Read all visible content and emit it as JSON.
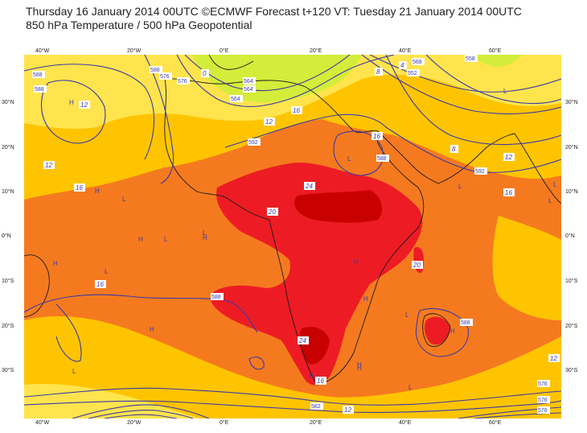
{
  "header": {
    "line1": "Thursday 16 January 2014 00UTC ©ECMWF Forecast t+120 VT: Tuesday 21 January 2014 00UTC",
    "line2": "850 hPa Temperature / 500 hPa Geopotential"
  },
  "axes": {
    "lon_labels": [
      "40°W",
      "20°W",
      "0°E",
      "20°E",
      "40°E",
      "60°E"
    ],
    "lat_labels": [
      "30°N",
      "20°N",
      "10°N",
      "0°N",
      "10°S",
      "20°S",
      "30°S"
    ]
  },
  "colors": {
    "ocean_warm": "#f57a1f",
    "band_yellow": "#ffc400",
    "band_lightyellow": "#ffe44d",
    "band_green": "#d4ec3a",
    "hot_red": "#ed1c24",
    "very_hot": "#c80000",
    "contour": "#3b3aa8",
    "coast": "#1a1a1a"
  },
  "temp_labels": [
    {
      "id": "t12a",
      "text": "12"
    },
    {
      "id": "t12b",
      "text": "12"
    },
    {
      "id": "t12c",
      "text": "12"
    },
    {
      "id": "t16a",
      "text": "16"
    },
    {
      "id": "t16b",
      "text": "16"
    },
    {
      "id": "t16c",
      "text": "16"
    },
    {
      "id": "t16d",
      "text": "16"
    },
    {
      "id": "t16e",
      "text": "16"
    },
    {
      "id": "t20a",
      "text": "20"
    },
    {
      "id": "t20b",
      "text": "20"
    },
    {
      "id": "t24a",
      "text": "24"
    },
    {
      "id": "t24b",
      "text": "24"
    },
    {
      "id": "t8a",
      "text": "8"
    },
    {
      "id": "t8b",
      "text": "8"
    },
    {
      "id": "t4a",
      "text": "4"
    },
    {
      "id": "t0a",
      "text": "0"
    },
    {
      "id": "t12d",
      "text": "12"
    },
    {
      "id": "t12e",
      "text": "12"
    },
    {
      "id": "t16f",
      "text": "16"
    },
    {
      "id": "t12f",
      "text": "12"
    }
  ],
  "geo_labels": [
    {
      "id": "g588a",
      "text": "588"
    },
    {
      "id": "g588b",
      "text": "588"
    },
    {
      "id": "g588c",
      "text": "588"
    },
    {
      "id": "g576a",
      "text": "576"
    },
    {
      "id": "g576b",
      "text": "576"
    },
    {
      "id": "g564a",
      "text": "564"
    },
    {
      "id": "g564b",
      "text": "564"
    },
    {
      "id": "g564c",
      "text": "564"
    },
    {
      "id": "g568a",
      "text": "568"
    },
    {
      "id": "g558a",
      "text": "558"
    },
    {
      "id": "g552a",
      "text": "552"
    },
    {
      "id": "g592a",
      "text": "592"
    },
    {
      "id": "g592b",
      "text": "592"
    },
    {
      "id": "g588d",
      "text": "588"
    },
    {
      "id": "g588e",
      "text": "588"
    },
    {
      "id": "g588f",
      "text": "588"
    },
    {
      "id": "g582a",
      "text": "582"
    },
    {
      "id": "g576c",
      "text": "576"
    },
    {
      "id": "g576d",
      "text": "576"
    },
    {
      "id": "g576e",
      "text": "576"
    }
  ],
  "pressure_marks": [
    {
      "id": "h1",
      "text": "H"
    },
    {
      "id": "h2",
      "text": "H"
    },
    {
      "id": "h3",
      "text": "H"
    },
    {
      "id": "h4",
      "text": "H"
    },
    {
      "id": "h5",
      "text": "H"
    },
    {
      "id": "h6",
      "text": "H"
    },
    {
      "id": "h7",
      "text": "H"
    },
    {
      "id": "h8",
      "text": "H"
    },
    {
      "id": "h9",
      "text": "H"
    },
    {
      "id": "h10",
      "text": "H"
    },
    {
      "id": "h11",
      "text": "H"
    },
    {
      "id": "h12",
      "text": "H"
    },
    {
      "id": "l1",
      "text": "L"
    },
    {
      "id": "l2",
      "text": "L"
    },
    {
      "id": "l3",
      "text": "L"
    },
    {
      "id": "l4",
      "text": "L"
    },
    {
      "id": "l5",
      "text": "L"
    },
    {
      "id": "l6",
      "text": "L"
    },
    {
      "id": "l7",
      "text": "L"
    },
    {
      "id": "l8",
      "text": "L"
    },
    {
      "id": "l9",
      "text": "L"
    },
    {
      "id": "l10",
      "text": "L"
    },
    {
      "id": "l11",
      "text": "L"
    },
    {
      "id": "l12",
      "text": "L"
    }
  ]
}
